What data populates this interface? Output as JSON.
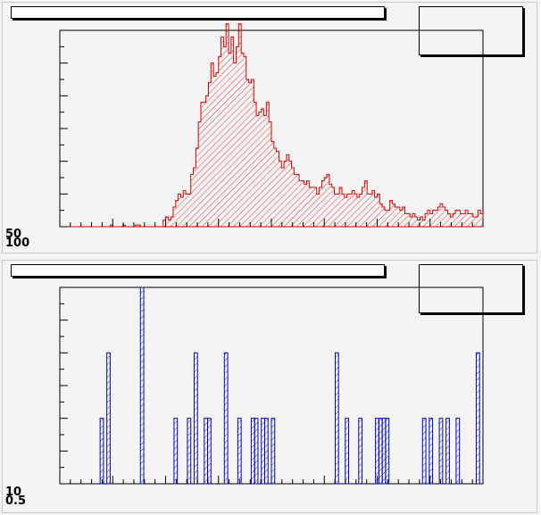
{
  "chart_data": [
    {
      "type": "bar",
      "style": "histogram",
      "title": "",
      "xlabel": "",
      "ylabel": "",
      "color": "#dd0000",
      "fill": "diagonal-hatch",
      "grid": false,
      "stats_box": "top-right",
      "ylim": [
        0,
        60
      ],
      "values": [
        0,
        0,
        0,
        0,
        0,
        0,
        0,
        0,
        0,
        0,
        0,
        0,
        0,
        0,
        0,
        0,
        0,
        0,
        0,
        0,
        0.5,
        0,
        0,
        0,
        0,
        0.5,
        0,
        0,
        0,
        0,
        0.5,
        0.5,
        0,
        0,
        0,
        0,
        0,
        0,
        0,
        0,
        0,
        2,
        3,
        2,
        3,
        6,
        8,
        10,
        9,
        11,
        10,
        10,
        16,
        18,
        24,
        32,
        38,
        38,
        40,
        44,
        50,
        46,
        47,
        52,
        58,
        55,
        62,
        53,
        58,
        50,
        55,
        62,
        53,
        52,
        45,
        44,
        45,
        38,
        34,
        35,
        36,
        34,
        38,
        32,
        26,
        24,
        23,
        20,
        18,
        20,
        22,
        20,
        18,
        16,
        16,
        14,
        14,
        13,
        14,
        12,
        12,
        12,
        10,
        12,
        14,
        15,
        16,
        13,
        12,
        10,
        10,
        12,
        10,
        9,
        10,
        10,
        11,
        10,
        9,
        10,
        12,
        14,
        10,
        10,
        11,
        9,
        10,
        7,
        6,
        5,
        5,
        8,
        7,
        6,
        6,
        5,
        6,
        4,
        4,
        3,
        4,
        3,
        2,
        3,
        2,
        4,
        5,
        4,
        5,
        5,
        6,
        7,
        6,
        5,
        4,
        3,
        4,
        5,
        5,
        4,
        4,
        5,
        4,
        4,
        3,
        3,
        5,
        4
      ]
    },
    {
      "type": "bar",
      "style": "histogram",
      "title": "",
      "xlabel": "",
      "ylabel": "",
      "color": "#0000cc",
      "fill": "diagonal-hatch",
      "grid": false,
      "stats_box": "top-right",
      "ylim": [
        0,
        6
      ],
      "values": [
        0,
        0,
        0,
        0,
        0,
        0,
        0,
        0,
        0,
        0,
        0,
        0,
        2,
        0,
        4,
        0,
        0,
        0,
        0,
        0,
        0,
        0,
        0,
        0,
        6,
        0,
        0,
        0,
        0,
        0,
        0,
        0,
        0,
        0,
        2,
        0,
        0,
        0,
        2,
        0,
        4,
        0,
        0,
        2,
        2,
        0,
        0,
        0,
        0,
        4,
        0,
        0,
        0,
        2,
        0,
        0,
        0,
        2,
        2,
        0,
        2,
        2,
        0,
        2,
        0,
        0,
        0,
        0,
        0,
        0,
        0,
        0,
        0,
        0,
        0,
        0,
        0,
        0,
        0,
        0,
        0,
        0,
        4,
        0,
        0,
        2,
        0,
        0,
        0,
        2,
        0,
        0,
        0,
        0,
        2,
        2,
        2,
        2,
        0,
        0,
        0,
        0,
        0,
        0,
        0,
        0,
        0,
        0,
        2,
        0,
        2,
        0,
        0,
        2,
        0,
        2,
        0,
        0,
        2,
        0,
        0,
        0,
        0,
        0,
        4,
        0
      ]
    }
  ],
  "axis_labels": {
    "top_y_min_a": "50",
    "top_y_min_b": "100",
    "bottom_y_min_a": "10",
    "bottom_y_min_b": "0.5"
  }
}
